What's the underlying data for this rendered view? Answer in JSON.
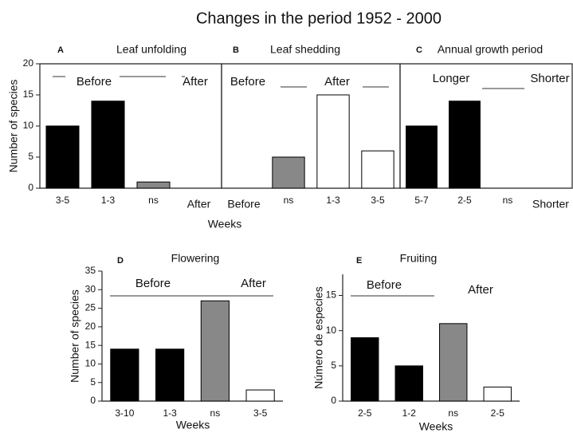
{
  "title": "Changes in the period 1952 - 2000",
  "chart_data": [
    {
      "type": "bar",
      "letter": "A",
      "title": "Leaf unfolding",
      "ylabel": "Number of species",
      "categories": [
        "3-5",
        "1-3",
        "ns",
        "After"
      ],
      "values": [
        10,
        14,
        1,
        null
      ],
      "colors": [
        "#000000",
        "#000000",
        "#888888",
        "#ffffff"
      ],
      "ylim": [
        0,
        20
      ],
      "yticks": [
        0,
        5,
        10,
        15,
        20
      ],
      "annotations": [
        "Before",
        "After"
      ]
    },
    {
      "type": "bar",
      "letter": "B",
      "title": "Leaf shedding",
      "xlabel": "Weeks",
      "categories": [
        "Before",
        "ns",
        "1-3",
        "3-5"
      ],
      "values": [
        null,
        5,
        15,
        6
      ],
      "colors": [
        "#ffffff",
        "#888888",
        "#ffffff",
        "#ffffff"
      ],
      "ylim": [
        0,
        20
      ],
      "annotations": [
        "Before",
        "After"
      ]
    },
    {
      "type": "bar",
      "letter": "C",
      "title": "Annual growth period",
      "categories": [
        "5-7",
        "2-5",
        "ns",
        "Shorter"
      ],
      "values": [
        10,
        14,
        0,
        null
      ],
      "colors": [
        "#000000",
        "#000000",
        "#888888",
        "#ffffff"
      ],
      "ylim": [
        0,
        20
      ],
      "annotations": [
        "Longer",
        "Shorter"
      ]
    },
    {
      "type": "bar",
      "letter": "D",
      "title": "Flowering",
      "ylabel": "Number of species",
      "xlabel": "Weeks",
      "categories": [
        "3-10",
        "1-3",
        "ns",
        "3-5"
      ],
      "values": [
        14,
        14,
        27,
        3
      ],
      "colors": [
        "#000000",
        "#000000",
        "#888888",
        "#ffffff"
      ],
      "ylim": [
        0,
        35
      ],
      "yticks": [
        0,
        5,
        10,
        15,
        20,
        25,
        30,
        35
      ],
      "annotations": [
        "Before",
        "After"
      ]
    },
    {
      "type": "bar",
      "letter": "E",
      "title": "Fruiting",
      "ylabel": "Número de especies",
      "xlabel": "Weeks",
      "categories": [
        "2-5",
        "1-2",
        "ns",
        "2-5"
      ],
      "values": [
        9,
        5,
        11,
        2
      ],
      "colors": [
        "#000000",
        "#000000",
        "#888888",
        "#ffffff"
      ],
      "ylim": [
        0,
        18
      ],
      "yticks": [
        0,
        5,
        10,
        15
      ],
      "annotations": [
        "Before",
        "After"
      ]
    }
  ]
}
